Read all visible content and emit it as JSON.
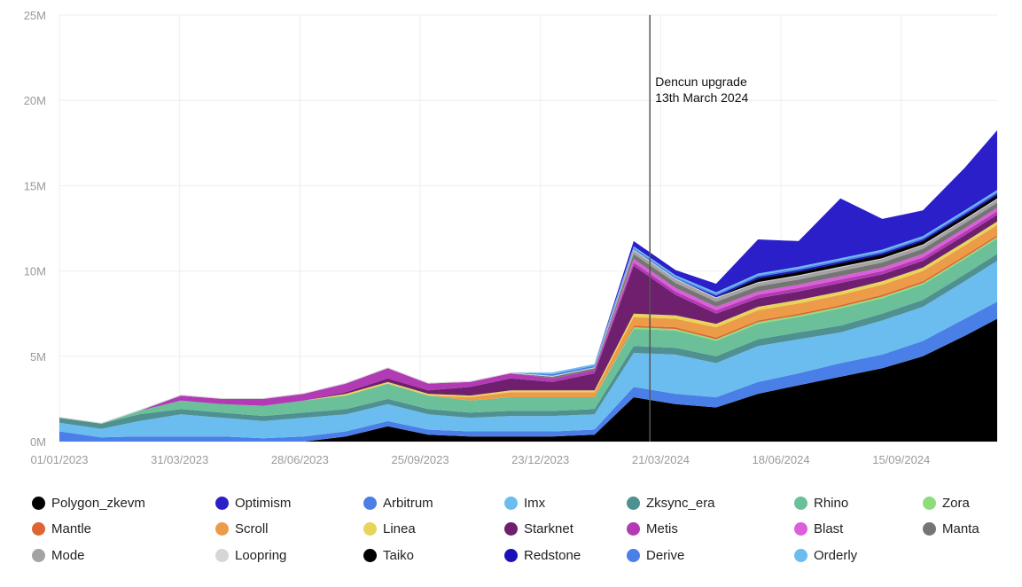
{
  "chart_data": {
    "type": "area",
    "stacked": true,
    "title": "",
    "xlabel": "",
    "ylabel": "",
    "ylim": [
      0,
      25000000
    ],
    "y_ticks": [
      0,
      5000000,
      10000000,
      15000000,
      20000000,
      25000000
    ],
    "y_tick_labels": [
      "0M",
      "5M",
      "10M",
      "15M",
      "20M",
      "25M"
    ],
    "x_ticks": [
      "2023-01-01",
      "2023-03-31",
      "2023-06-28",
      "2023-09-25",
      "2023-12-23",
      "2024-03-21",
      "2024-06-18",
      "2024-09-15"
    ],
    "x_tick_labels": [
      "01/01/2023",
      "31/03/2023",
      "28/06/2023",
      "25/09/2023",
      "23/12/2023",
      "21/03/2024",
      "18/06/2024",
      "15/09/2024"
    ],
    "xlim": [
      "2023-01-01",
      "2024-11-25"
    ],
    "grid": true,
    "legend_position": "bottom",
    "annotation": {
      "date": "2024-03-13",
      "lines": [
        "Dencun upgrade",
        "13th March 2024"
      ]
    },
    "x": [
      "2023-01-01",
      "2023-02-01",
      "2023-03-01",
      "2023-04-01",
      "2023-05-01",
      "2023-06-01",
      "2023-07-01",
      "2023-08-01",
      "2023-09-01",
      "2023-10-01",
      "2023-11-01",
      "2023-12-01",
      "2024-01-01",
      "2024-02-01",
      "2024-03-01",
      "2024-04-01",
      "2024-05-01",
      "2024-06-01",
      "2024-07-01",
      "2024-08-01",
      "2024-09-01",
      "2024-10-01",
      "2024-11-01",
      "2024-11-25"
    ],
    "unit": "M",
    "series": [
      {
        "name": "Polygon_zkevm",
        "color": "#000000",
        "values": [
          0,
          0,
          0,
          0,
          0,
          0,
          0,
          0.3,
          0.9,
          0.4,
          0.3,
          0.3,
          0.3,
          0.4,
          2.6,
          2.2,
          2.0,
          2.8,
          3.3,
          3.8,
          4.3,
          5.0,
          6.2,
          7.2
        ]
      },
      {
        "name": "Arbitrum",
        "color": "#4a7fe8",
        "values": [
          0.6,
          0.25,
          0.3,
          0.3,
          0.3,
          0.2,
          0.3,
          0.3,
          0.3,
          0.3,
          0.3,
          0.3,
          0.3,
          0.3,
          0.6,
          0.6,
          0.6,
          0.7,
          0.7,
          0.8,
          0.8,
          0.9,
          1.0,
          1.0
        ]
      },
      {
        "name": "Imx",
        "color": "#6bbcef",
        "values": [
          0.5,
          0.5,
          0.9,
          1.3,
          1.1,
          1.0,
          1.1,
          1.0,
          1.0,
          0.9,
          0.8,
          0.9,
          0.9,
          0.9,
          2.0,
          2.3,
          2.0,
          2.1,
          2.0,
          1.8,
          2.0,
          2.0,
          2.2,
          2.4
        ]
      },
      {
        "name": "Zksync_era",
        "color": "#4f9090",
        "values": [
          0.3,
          0.3,
          0.4,
          0.3,
          0.3,
          0.3,
          0.3,
          0.3,
          0.3,
          0.3,
          0.3,
          0.3,
          0.3,
          0.3,
          0.4,
          0.4,
          0.4,
          0.4,
          0.4,
          0.4,
          0.4,
          0.4,
          0.4,
          0.4
        ]
      },
      {
        "name": "Rhino",
        "color": "#6bbf99",
        "values": [
          0,
          0,
          0.2,
          0.5,
          0.5,
          0.6,
          0.7,
          0.8,
          0.9,
          0.8,
          0.7,
          0.8,
          0.8,
          0.7,
          1.0,
          1.0,
          0.9,
          0.9,
          0.9,
          1.0,
          0.9,
          0.9,
          0.9,
          0.9
        ]
      },
      {
        "name": "Zora",
        "color": "#8fdc7a",
        "values": [
          0,
          0,
          0,
          0,
          0,
          0,
          0,
          0,
          0,
          0,
          0,
          0,
          0,
          0,
          0.1,
          0.1,
          0.1,
          0.1,
          0.1,
          0.1,
          0.1,
          0.1,
          0.1,
          0.1
        ]
      },
      {
        "name": "Mantle",
        "color": "#de6434",
        "values": [
          0,
          0,
          0,
          0,
          0,
          0,
          0,
          0,
          0,
          0,
          0,
          0,
          0,
          0,
          0.1,
          0.1,
          0.1,
          0.1,
          0.1,
          0.1,
          0.1,
          0.1,
          0.1,
          0.1
        ]
      },
      {
        "name": "Scroll",
        "color": "#ec9b48",
        "values": [
          0,
          0,
          0,
          0,
          0,
          0,
          0,
          0,
          0,
          0,
          0.2,
          0.3,
          0.3,
          0.3,
          0.5,
          0.5,
          0.6,
          0.6,
          0.6,
          0.6,
          0.6,
          0.6,
          0.6,
          0.6
        ]
      },
      {
        "name": "Linea",
        "color": "#e8d45a",
        "values": [
          0,
          0,
          0,
          0,
          0,
          0,
          0,
          0.1,
          0.1,
          0.1,
          0.1,
          0.1,
          0.1,
          0.1,
          0.2,
          0.2,
          0.2,
          0.2,
          0.2,
          0.2,
          0.2,
          0.2,
          0.2,
          0.2
        ]
      },
      {
        "name": "Starknet",
        "color": "#6e1f6e",
        "values": [
          0,
          0,
          0,
          0,
          0,
          0,
          0,
          0.1,
          0.2,
          0.2,
          0.5,
          0.7,
          0.5,
          1.0,
          2.8,
          1.2,
          0.6,
          0.5,
          0.5,
          0.5,
          0.4,
          0.4,
          0.4,
          0.4
        ]
      },
      {
        "name": "Metis",
        "color": "#b23ab5",
        "values": [
          0,
          0,
          0,
          0.3,
          0.3,
          0.4,
          0.4,
          0.5,
          0.6,
          0.4,
          0.3,
          0.3,
          0.2,
          0.2,
          0.2,
          0.2,
          0.2,
          0.2,
          0.2,
          0.2,
          0.2,
          0.2,
          0.2,
          0.2
        ]
      },
      {
        "name": "Blast",
        "color": "#dd5ed9",
        "values": [
          0,
          0,
          0,
          0,
          0,
          0,
          0,
          0,
          0,
          0,
          0,
          0,
          0,
          0,
          0.2,
          0.2,
          0.2,
          0.2,
          0.2,
          0.2,
          0.2,
          0.2,
          0.2,
          0.2
        ]
      },
      {
        "name": "Manta",
        "color": "#757575",
        "values": [
          0,
          0,
          0,
          0,
          0,
          0,
          0,
          0,
          0,
          0,
          0,
          0,
          0.1,
          0.1,
          0.3,
          0.3,
          0.3,
          0.3,
          0.3,
          0.3,
          0.3,
          0.3,
          0.3,
          0.3
        ]
      },
      {
        "name": "Mode",
        "color": "#a3a3a3",
        "values": [
          0,
          0,
          0,
          0,
          0,
          0,
          0,
          0,
          0,
          0,
          0,
          0,
          0,
          0,
          0.2,
          0.2,
          0.2,
          0.2,
          0.2,
          0.2,
          0.2,
          0.2,
          0.2,
          0.2
        ]
      },
      {
        "name": "Loopring",
        "color": "#d6d6d6",
        "values": [
          0.05,
          0.05,
          0.05,
          0.05,
          0.05,
          0.05,
          0.05,
          0.05,
          0.05,
          0.05,
          0.05,
          0.05,
          0.05,
          0.05,
          0.05,
          0.05,
          0.05,
          0.05,
          0.05,
          0.05,
          0.05,
          0.05,
          0.05,
          0.05
        ]
      },
      {
        "name": "Taiko",
        "color": "#000000",
        "values": [
          0,
          0,
          0,
          0,
          0,
          0,
          0,
          0,
          0,
          0,
          0,
          0,
          0,
          0,
          0,
          0,
          0,
          0.2,
          0.2,
          0.2,
          0.2,
          0.2,
          0.2,
          0.2
        ]
      },
      {
        "name": "Redstone",
        "color": "#1a12b8",
        "values": [
          0,
          0,
          0,
          0,
          0,
          0,
          0,
          0,
          0,
          0,
          0,
          0,
          0,
          0,
          0,
          0,
          0.1,
          0.1,
          0.1,
          0.1,
          0.1,
          0.1,
          0.1,
          0.1
        ]
      },
      {
        "name": "Derive",
        "color": "#4a7fe8",
        "values": [
          0,
          0,
          0,
          0,
          0,
          0,
          0,
          0,
          0,
          0,
          0,
          0,
          0.1,
          0.1,
          0.1,
          0.1,
          0.1,
          0.1,
          0.1,
          0.1,
          0.1,
          0.1,
          0.1,
          0.1
        ]
      },
      {
        "name": "Orderly",
        "color": "#6bbcef",
        "values": [
          0,
          0,
          0,
          0,
          0,
          0,
          0,
          0,
          0,
          0,
          0,
          0,
          0.1,
          0.1,
          0.1,
          0.1,
          0.1,
          0.1,
          0.1,
          0.1,
          0.1,
          0.1,
          0.1,
          0.1
        ]
      },
      {
        "name": "Optimism",
        "color": "#2a1fc9",
        "values": [
          0,
          0,
          0,
          0,
          0,
          0,
          0,
          0,
          0,
          0,
          0,
          0,
          0,
          0,
          0.3,
          0.3,
          0.5,
          2.0,
          1.5,
          3.5,
          1.8,
          1.5,
          2.5,
          3.5
        ]
      }
    ]
  },
  "legend": [
    "Polygon_zkevm",
    "Optimism",
    "Arbitrum",
    "Imx",
    "Zksync_era",
    "Rhino",
    "Zora",
    "Mantle",
    "Scroll",
    "Linea",
    "Starknet",
    "Metis",
    "Blast",
    "Manta",
    "Mode",
    "Loopring",
    "Taiko",
    "Redstone",
    "Derive",
    "Orderly"
  ],
  "legend_colors": [
    "#000000",
    "#2a1fc9",
    "#4a7fe8",
    "#6bbcef",
    "#4f9090",
    "#6bbf99",
    "#8fdc7a",
    "#de6434",
    "#ec9b48",
    "#e8d45a",
    "#6e1f6e",
    "#b23ab5",
    "#dd5ed9",
    "#757575",
    "#a3a3a3",
    "#d6d6d6",
    "#000000",
    "#1a12b8",
    "#4a7fe8",
    "#6bbcef"
  ]
}
